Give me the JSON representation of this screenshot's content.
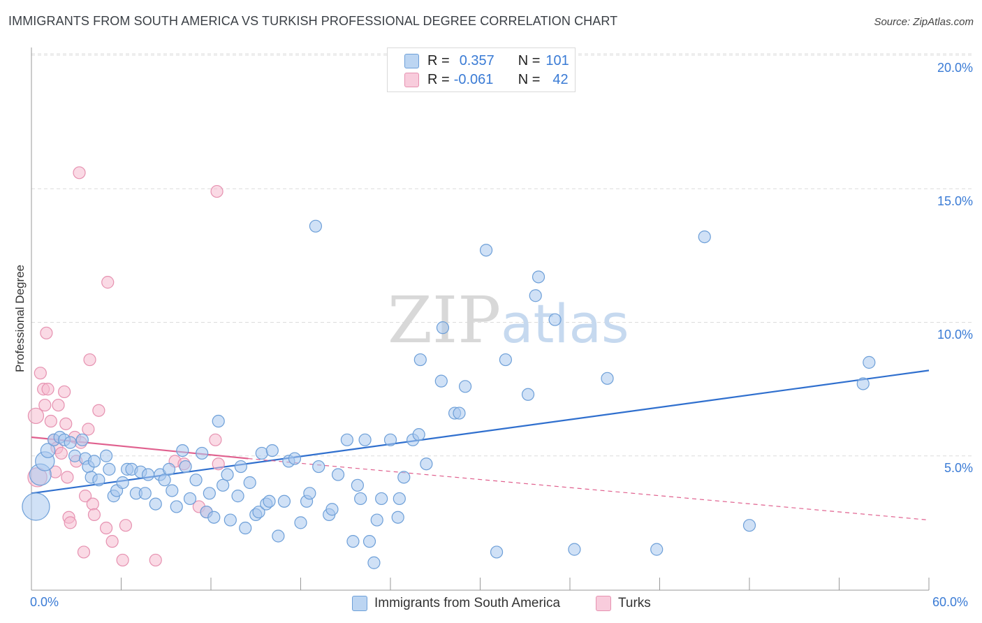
{
  "title": "IMMIGRANTS FROM SOUTH AMERICA VS TURKISH PROFESSIONAL DEGREE CORRELATION CHART",
  "source": "Source: ZipAtlas.com",
  "legend": {
    "rows": [
      {
        "r_label": "R =",
        "r_value": "0.357",
        "n_label": "N =",
        "n_value": "101"
      },
      {
        "r_label": "R =",
        "r_value": "-0.061",
        "n_label": "N =",
        "n_value": "42"
      }
    ]
  },
  "colors": {
    "blue_fill": "#a9c8ee",
    "blue_stroke": "#6d9fd8",
    "blue_line": "#2f6fce",
    "pink_fill": "#f5bcd0",
    "pink_stroke": "#e691b0",
    "pink_line": "#e0608e",
    "grid": "#dcdcdc",
    "tick_text": "#3a7bd5"
  },
  "chart_data": {
    "type": "scatter",
    "ylabel": "Professional Degree",
    "x_ticks": [
      "0.0%",
      "60.0%"
    ],
    "y_ticks": [
      "5.0%",
      "10.0%",
      "15.0%",
      "20.0%"
    ],
    "xlim": [
      0,
      60
    ],
    "ylim": [
      0,
      20.5
    ],
    "grid": "horizontal dashed",
    "legend_position": "top-center",
    "watermark": "ZIPatlas",
    "series": [
      {
        "name": "Immigrants from South America",
        "color": "blue",
        "trend": {
          "x1": 0,
          "y1": 3.6,
          "x2": 60,
          "y2": 8.2
        },
        "points": [
          [
            0.3,
            3.1,
            2.3
          ],
          [
            0.6,
            4.3,
            1.8
          ],
          [
            0.9,
            4.8,
            1.6
          ],
          [
            1.1,
            5.2,
            1.2
          ],
          [
            1.5,
            5.6,
            1.0
          ],
          [
            1.9,
            5.7,
            1.0
          ],
          [
            2.2,
            5.6,
            1.0
          ],
          [
            2.6,
            5.5,
            1.0
          ],
          [
            2.9,
            5.0,
            1.0
          ],
          [
            3.4,
            5.6,
            1.0
          ],
          [
            3.6,
            4.9,
            1.0
          ],
          [
            3.8,
            4.6,
            1.0
          ],
          [
            4.0,
            4.2,
            1.0
          ],
          [
            4.2,
            4.8,
            1.0
          ],
          [
            4.5,
            4.1,
            1.0
          ],
          [
            5.0,
            5.0,
            1.0
          ],
          [
            5.2,
            4.5,
            1.0
          ],
          [
            5.5,
            3.5,
            1.0
          ],
          [
            5.7,
            3.7,
            1.0
          ],
          [
            6.1,
            4.0,
            1.0
          ],
          [
            6.4,
            4.5,
            1.0
          ],
          [
            6.7,
            4.5,
            1.0
          ],
          [
            7.0,
            3.6,
            1.0
          ],
          [
            7.3,
            4.4,
            1.0
          ],
          [
            7.6,
            3.6,
            1.0
          ],
          [
            7.8,
            4.3,
            1.0
          ],
          [
            8.3,
            3.2,
            1.0
          ],
          [
            8.6,
            4.3,
            1.0
          ],
          [
            8.9,
            4.1,
            1.0
          ],
          [
            9.2,
            4.5,
            1.0
          ],
          [
            9.4,
            3.7,
            1.0
          ],
          [
            9.7,
            3.1,
            1.0
          ],
          [
            10.1,
            5.2,
            1.0
          ],
          [
            10.3,
            4.6,
            1.0
          ],
          [
            10.6,
            3.4,
            1.0
          ],
          [
            11.0,
            4.1,
            1.0
          ],
          [
            11.4,
            5.1,
            1.0
          ],
          [
            11.7,
            2.9,
            1.0
          ],
          [
            11.9,
            3.6,
            1.0
          ],
          [
            12.2,
            2.7,
            1.0
          ],
          [
            12.5,
            6.3,
            1.0
          ],
          [
            12.8,
            3.9,
            1.0
          ],
          [
            13.1,
            4.3,
            1.0
          ],
          [
            13.3,
            2.6,
            1.0
          ],
          [
            13.8,
            3.5,
            1.0
          ],
          [
            14.0,
            4.6,
            1.0
          ],
          [
            14.3,
            2.3,
            1.0
          ],
          [
            14.6,
            4.0,
            1.0
          ],
          [
            15.0,
            2.8,
            1.0
          ],
          [
            15.2,
            2.9,
            1.0
          ],
          [
            15.4,
            5.1,
            1.0
          ],
          [
            15.7,
            3.2,
            1.0
          ],
          [
            15.9,
            3.3,
            1.0
          ],
          [
            16.1,
            5.2,
            1.0
          ],
          [
            16.5,
            2.0,
            1.0
          ],
          [
            16.9,
            3.3,
            1.0
          ],
          [
            17.2,
            4.8,
            1.0
          ],
          [
            17.6,
            4.9,
            1.0
          ],
          [
            18.0,
            2.5,
            1.0
          ],
          [
            18.4,
            3.3,
            1.0
          ],
          [
            18.6,
            3.6,
            1.0
          ],
          [
            19.0,
            13.6,
            1.0
          ],
          [
            19.2,
            4.6,
            1.0
          ],
          [
            19.9,
            2.8,
            1.0
          ],
          [
            20.1,
            3.0,
            1.0
          ],
          [
            20.5,
            4.3,
            1.0
          ],
          [
            21.1,
            5.6,
            1.0
          ],
          [
            21.5,
            1.8,
            1.0
          ],
          [
            21.8,
            3.9,
            1.0
          ],
          [
            22.0,
            3.4,
            1.0
          ],
          [
            22.3,
            5.6,
            1.0
          ],
          [
            22.6,
            1.8,
            1.0
          ],
          [
            22.9,
            1.0,
            1.0
          ],
          [
            23.1,
            2.6,
            1.0
          ],
          [
            23.4,
            3.4,
            1.0
          ],
          [
            24.0,
            5.6,
            1.0
          ],
          [
            24.5,
            2.7,
            1.0
          ],
          [
            24.6,
            3.4,
            1.0
          ],
          [
            24.9,
            4.2,
            1.0
          ],
          [
            25.5,
            5.6,
            1.0
          ],
          [
            25.9,
            5.8,
            1.0
          ],
          [
            26.0,
            8.6,
            1.0
          ],
          [
            26.4,
            4.7,
            1.0
          ],
          [
            27.4,
            7.8,
            1.0
          ],
          [
            27.5,
            9.8,
            1.0
          ],
          [
            28.3,
            6.6,
            1.0
          ],
          [
            28.6,
            6.6,
            1.0
          ],
          [
            29.0,
            7.6,
            1.0
          ],
          [
            30.4,
            12.7,
            1.0
          ],
          [
            31.1,
            1.4,
            1.0
          ],
          [
            31.7,
            8.6,
            1.0
          ],
          [
            33.2,
            7.3,
            1.0
          ],
          [
            33.7,
            11.0,
            1.0
          ],
          [
            33.9,
            11.7,
            1.0
          ],
          [
            35.0,
            10.1,
            1.0
          ],
          [
            36.3,
            1.5,
            1.0
          ],
          [
            38.5,
            7.9,
            1.0
          ],
          [
            41.8,
            1.5,
            1.0
          ],
          [
            45.0,
            13.2,
            1.0
          ],
          [
            48.0,
            2.4,
            1.0
          ],
          [
            55.6,
            7.7,
            1.0
          ],
          [
            56.0,
            8.5,
            1.0
          ]
        ]
      },
      {
        "name": "Turks",
        "color": "pink",
        "trend": {
          "x1": 0,
          "y1": 5.7,
          "x2": 14.5,
          "y2": 4.9
        },
        "trend_dashed": {
          "x1": 14.5,
          "y1": 4.9,
          "x2": 60,
          "y2": 2.6
        },
        "points": [
          [
            0.3,
            6.5,
            1.3
          ],
          [
            0.4,
            4.2,
            1.6
          ],
          [
            0.6,
            8.1,
            1.0
          ],
          [
            0.8,
            7.5,
            1.0
          ],
          [
            0.9,
            6.9,
            1.0
          ],
          [
            1.0,
            9.6,
            1.0
          ],
          [
            1.1,
            7.5,
            1.0
          ],
          [
            1.3,
            6.3,
            1.0
          ],
          [
            1.5,
            5.6,
            1.0
          ],
          [
            1.6,
            4.4,
            1.0
          ],
          [
            1.7,
            5.3,
            1.0
          ],
          [
            1.8,
            6.9,
            1.0
          ],
          [
            2.0,
            5.1,
            1.0
          ],
          [
            2.2,
            7.4,
            1.0
          ],
          [
            2.3,
            6.2,
            1.0
          ],
          [
            2.4,
            4.2,
            1.0
          ],
          [
            2.5,
            2.7,
            1.0
          ],
          [
            2.6,
            2.5,
            1.0
          ],
          [
            2.9,
            5.7,
            1.0
          ],
          [
            3.0,
            4.8,
            1.0
          ],
          [
            3.2,
            15.6,
            1.0
          ],
          [
            3.3,
            5.5,
            1.0
          ],
          [
            3.5,
            1.4,
            1.0
          ],
          [
            3.6,
            3.5,
            1.0
          ],
          [
            3.8,
            6.0,
            1.0
          ],
          [
            3.9,
            8.6,
            1.0
          ],
          [
            4.1,
            3.2,
            1.0
          ],
          [
            4.2,
            2.8,
            1.0
          ],
          [
            4.5,
            6.7,
            1.0
          ],
          [
            5.0,
            2.3,
            1.0
          ],
          [
            5.1,
            11.5,
            1.0
          ],
          [
            5.4,
            1.8,
            1.0
          ],
          [
            6.1,
            1.1,
            1.0
          ],
          [
            6.3,
            2.4,
            1.0
          ],
          [
            8.3,
            1.1,
            1.0
          ],
          [
            9.6,
            4.8,
            1.0
          ],
          [
            10.2,
            4.7,
            1.0
          ],
          [
            11.2,
            3.1,
            1.0
          ],
          [
            11.7,
            2.9,
            1.0
          ],
          [
            12.3,
            5.6,
            1.0
          ],
          [
            12.5,
            4.7,
            1.0
          ],
          [
            12.4,
            14.9,
            1.0
          ]
        ]
      }
    ]
  },
  "bottom_legend": [
    "Immigrants from South America",
    "Turks"
  ]
}
